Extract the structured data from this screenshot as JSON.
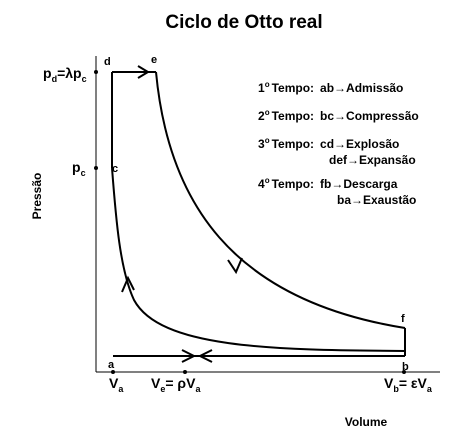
{
  "title": "Ciclo de Otto real",
  "axes": {
    "y_label": "Pressão",
    "x_label": "Volume"
  },
  "points": {
    "a": "a",
    "b": "b",
    "c": "c",
    "d": "d",
    "e": "e",
    "f": "f"
  },
  "pressure_labels": {
    "pd": {
      "main": "p",
      "sub": "d",
      "expr": "=λp",
      "sub2": "c"
    },
    "pc": {
      "main": "p",
      "sub": "c"
    }
  },
  "volume_labels": {
    "va": {
      "main": "V",
      "sub": "a"
    },
    "ve": {
      "main": "V",
      "sub": "e",
      "expr": "= ρV",
      "sub2": "a"
    },
    "vb": {
      "main": "V",
      "sub": "b",
      "expr": "= εV",
      "sub2": "a"
    }
  },
  "legend": [
    {
      "num": "1",
      "sup": "o",
      "label": "Tempo:",
      "steps": [
        "ab→Admissão"
      ]
    },
    {
      "num": "2",
      "sup": "o",
      "label": "Tempo:",
      "steps": [
        "bc→Compressão"
      ]
    },
    {
      "num": "3",
      "sup": "o",
      "label": "Tempo:",
      "steps": [
        "cd→Explosão",
        "def→Expansão"
      ]
    },
    {
      "num": "4",
      "sup": "o",
      "label": "Tempo:",
      "steps": [
        "fb→Descarga",
        "ba→Exaustão"
      ]
    }
  ]
}
